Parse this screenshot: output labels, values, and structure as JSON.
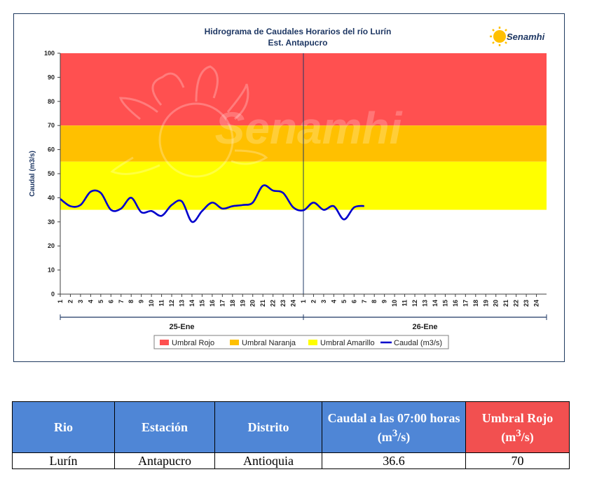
{
  "chart_data": {
    "type": "line",
    "title": "Hidrograma de Caudales Horarios del río Lurín",
    "subtitle": "Est. Antapucro",
    "ylabel": "Caudal  (m3/s)",
    "ylim": [
      0,
      100
    ],
    "yticks": [
      "0",
      "10",
      "20",
      "30",
      "40",
      "50",
      "60",
      "70",
      "80",
      "90",
      "100"
    ],
    "xticks": [
      "1",
      "2",
      "3",
      "4",
      "5",
      "6",
      "7",
      "8",
      "9",
      "10",
      "11",
      "12",
      "13",
      "14",
      "15",
      "16",
      "17",
      "18",
      "19",
      "20",
      "21",
      "22",
      "23",
      "24",
      "1",
      "2",
      "3",
      "4",
      "5",
      "6",
      "7",
      "8",
      "9",
      "10",
      "11",
      "12",
      "13",
      "14",
      "15",
      "16",
      "17",
      "18",
      "19",
      "20",
      "21",
      "22",
      "23",
      "24"
    ],
    "days": [
      "25-Ene",
      "26-Ene"
    ],
    "bands": [
      {
        "name": "Umbral Rojo",
        "from": 70,
        "to": 100,
        "color": "#ff5050"
      },
      {
        "name": "Umbral Naranja",
        "from": 55,
        "to": 70,
        "color": "#ffc000"
      },
      {
        "name": "Umbral Amarillo",
        "from": 35,
        "to": 55,
        "color": "#ffff00"
      }
    ],
    "series": [
      {
        "name": "Caudal (m3/s)",
        "color": "#0000cc",
        "values": [
          39.5,
          36.5,
          37,
          42.5,
          42,
          35,
          35.5,
          40,
          34,
          34.5,
          32.5,
          37,
          38.5,
          30,
          34.5,
          38,
          35.5,
          36.5,
          37,
          38,
          45,
          43,
          42,
          36,
          34.8,
          38,
          35,
          36.5,
          31,
          36,
          36.6
        ]
      }
    ],
    "legend": [
      "Umbral Rojo",
      "Umbral Naranja",
      "Umbral Amarillo",
      "Caudal (m3/s)"
    ]
  },
  "logo": {
    "text": "Senamhi"
  },
  "watermark": {
    "text": "Senamhi"
  },
  "table": {
    "headers": [
      "Rio",
      "Estación",
      "Distrito",
      "Caudal a las 07:00 horas",
      "Umbral Rojo"
    ],
    "header_units": [
      "",
      "",
      "",
      "(m3/s)",
      "(m3/s)"
    ],
    "row": [
      "Lurín",
      "Antapucro",
      "Antioquia",
      "36.6",
      "70"
    ]
  }
}
